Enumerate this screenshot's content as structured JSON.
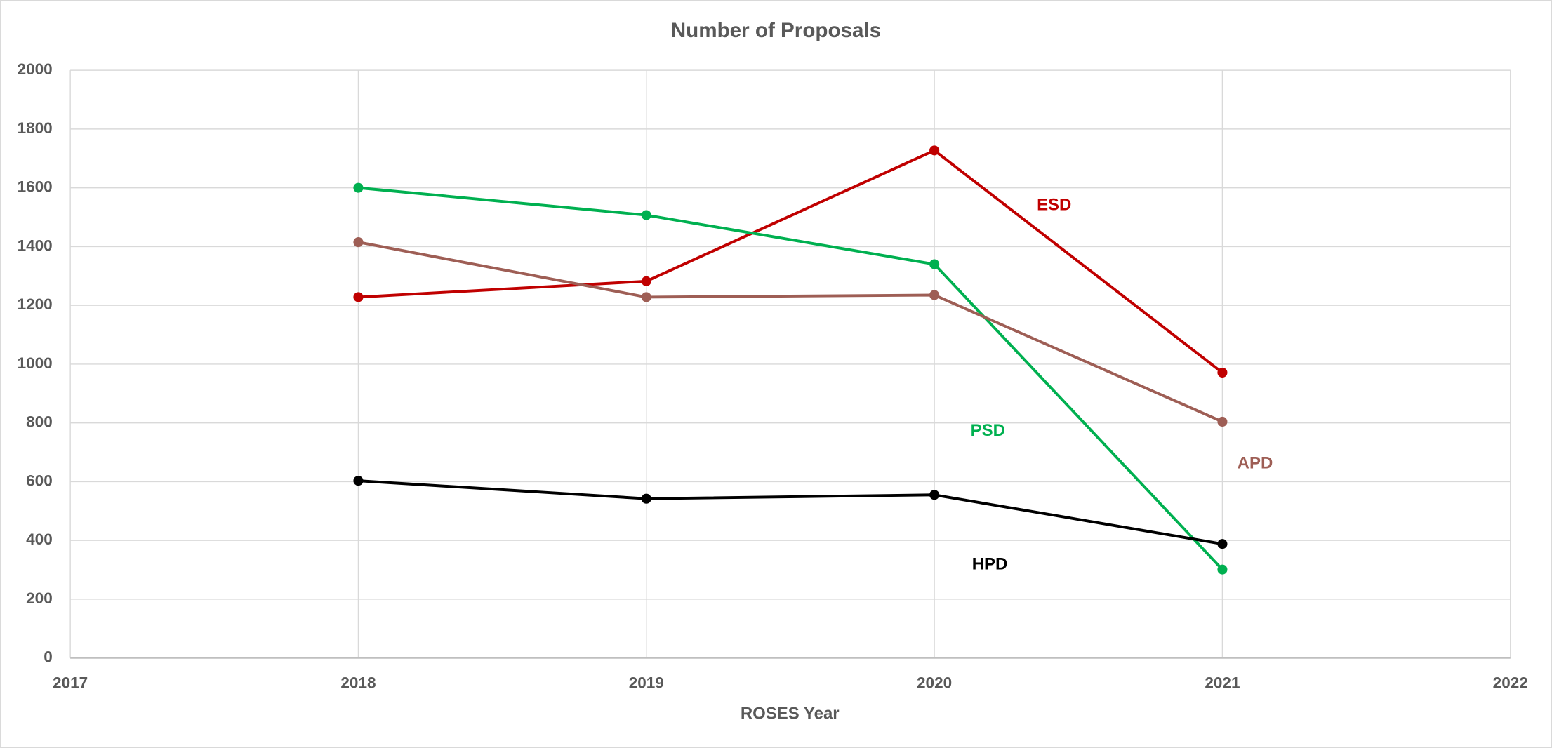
{
  "chart_data": {
    "type": "line",
    "title": "Number of Proposals",
    "x_label": "ROSES Year",
    "x": [
      2018,
      2019,
      2020,
      2021
    ],
    "series": [
      {
        "name": "ESD",
        "color": "#c00000",
        "values": [
          1228,
          1282,
          1727,
          971
        ]
      },
      {
        "name": "PSD",
        "color": "#00b050",
        "values": [
          1600,
          1507,
          1340,
          301
        ]
      },
      {
        "name": "APD",
        "color": "#9e5e55",
        "values": [
          1415,
          1228,
          1235,
          804
        ]
      },
      {
        "name": "HPD",
        "color": "#000000",
        "values": [
          603,
          542,
          555,
          388
        ]
      }
    ],
    "xlim": [
      2017,
      2022
    ],
    "xticks": [
      2017,
      2018,
      2019,
      2020,
      2021,
      2022
    ],
    "ylim": [
      0,
      2000
    ],
    "yticks": [
      0,
      200,
      400,
      600,
      800,
      1000,
      1200,
      1400,
      1600,
      1800,
      2000
    ],
    "grid": true
  }
}
